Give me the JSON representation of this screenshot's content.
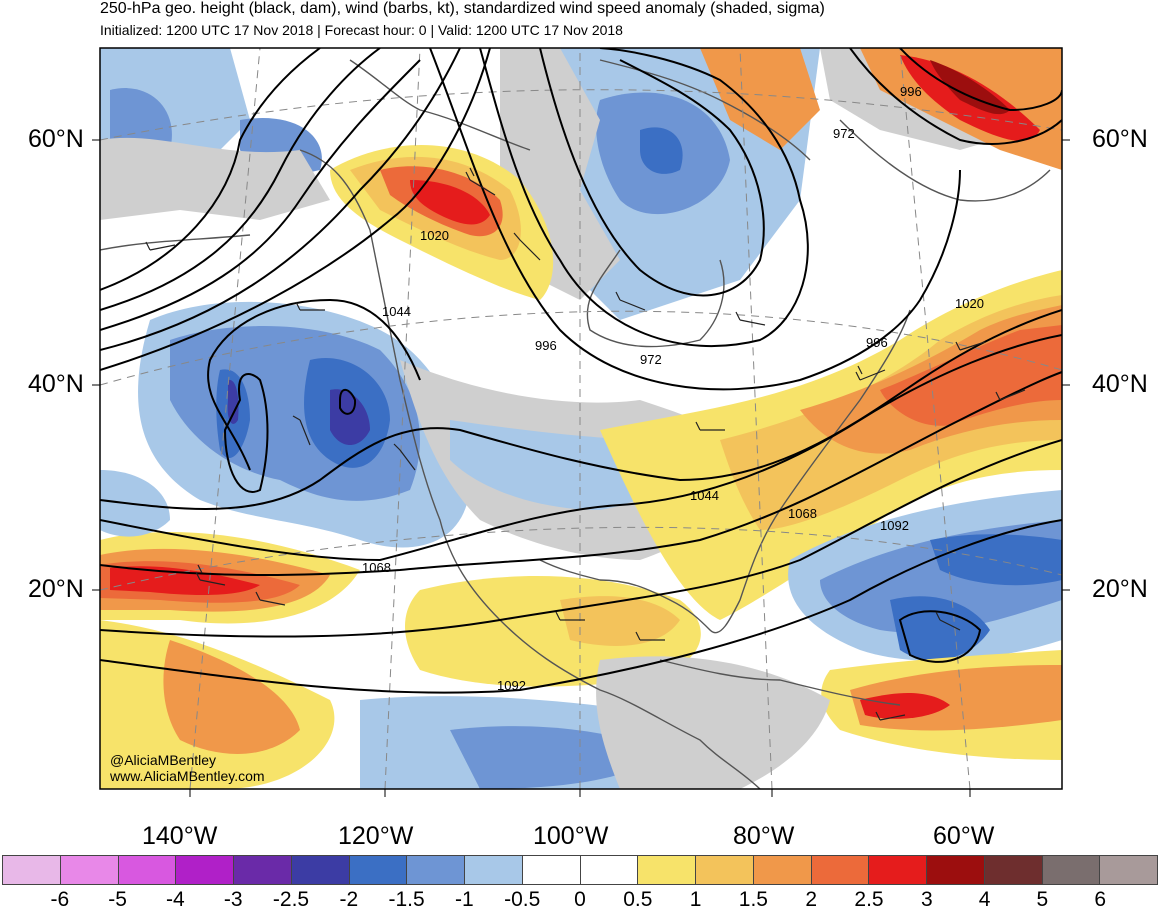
{
  "title": "250-hPa geo. height (black, dam), wind (barbs, kt), standardized wind speed anomaly (shaded, sigma)",
  "subtitle": "Initialized: 1200 UTC 17 Nov 2018 | Forecast hour: 0 | Valid: 1200 UTC 17 Nov 2018",
  "latitude_labels": [
    "60°N",
    "40°N",
    "20°N"
  ],
  "longitude_labels": [
    "140°W",
    "120°W",
    "100°W",
    "80°W",
    "60°W"
  ],
  "contour_labels": [
    "996",
    "972",
    "1020",
    "1044",
    "996",
    "972",
    "996",
    "1020",
    "1044",
    "1068",
    "1092",
    "1068",
    "1092"
  ],
  "credits": [
    "@AliciaMBentley",
    "www.AliciaMBentley.com"
  ],
  "colorbar": {
    "labels": [
      "-6",
      "-5",
      "-4",
      "-3",
      "-2.5",
      "-2",
      "-1.5",
      "-1",
      "-0.5",
      "0",
      "0.5",
      "1",
      "1.5",
      "2",
      "2.5",
      "3",
      "4",
      "5",
      "6"
    ],
    "colors": [
      "#e8b8e8",
      "#e888e8",
      "#d858e0",
      "#b020c8",
      "#6a2aa8",
      "#3c3ca4",
      "#3b6fc4",
      "#6e95d4",
      "#a8c8e8",
      "#ffffff",
      "#ffffff",
      "#f7e36a",
      "#f3c35b",
      "#f0984a",
      "#ec6a3a",
      "#e51c1c",
      "#9c0e0e",
      "#6e2e2e",
      "#7a6e6e",
      "#a89a9a"
    ]
  },
  "map_colors": {
    "ocean_bg": "#ffffff",
    "gray_positive": "#cfcfcf",
    "coast": "#555555",
    "contour": "#000000"
  }
}
